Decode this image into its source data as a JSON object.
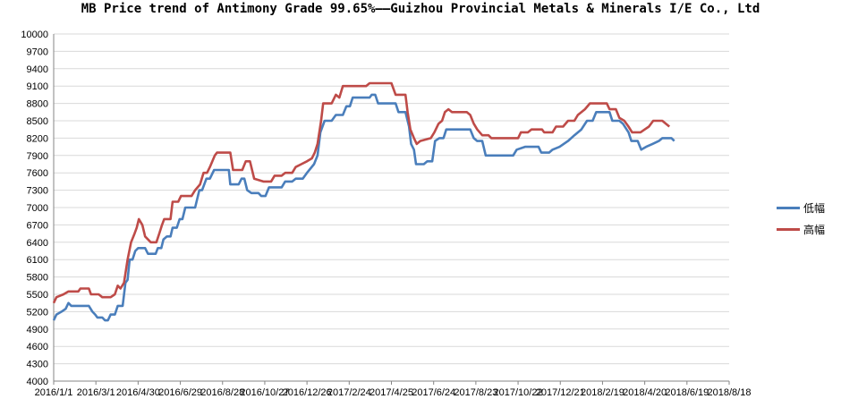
{
  "chart_data": {
    "type": "line",
    "title": "MB Price trend of Antimony Grade 99.65%——Guizhou Provincial Metals & Minerals I/E Co., Ltd",
    "xlabel": "",
    "ylabel": "",
    "x_range": [
      "2016-01-01",
      "2018-08-18"
    ],
    "x_tick_labels": [
      "2016/1/1",
      "2016/3/1",
      "2016/4/30",
      "2016/6/29",
      "2016/8/28",
      "2016/10/27",
      "2016/12/26",
      "2017/2/24",
      "2017/4/25",
      "2017/6/24",
      "2017/8/23",
      "2017/10/22",
      "2017/12/21",
      "2018/2/19",
      "2018/4/20",
      "2018/6/19",
      "2018/8/18"
    ],
    "ylim": [
      4000,
      10000
    ],
    "y_ticks": [
      4000,
      4300,
      4600,
      4900,
      5200,
      5500,
      5800,
      6100,
      6400,
      6700,
      7000,
      7300,
      7600,
      7900,
      8200,
      8500,
      8800,
      9100,
      9400,
      9700,
      10000
    ],
    "grid": "horizontal",
    "legend_position": "right",
    "series": [
      {
        "name": "低幅",
        "color": "#4a7ebb",
        "points": [
          [
            "2016-01-01",
            5050
          ],
          [
            "2016-01-05",
            5150
          ],
          [
            "2016-01-12",
            5200
          ],
          [
            "2016-01-18",
            5250
          ],
          [
            "2016-01-22",
            5350
          ],
          [
            "2016-01-26",
            5300
          ],
          [
            "2016-02-10",
            5300
          ],
          [
            "2016-02-20",
            5300
          ],
          [
            "2016-02-25",
            5200
          ],
          [
            "2016-02-29",
            5150
          ],
          [
            "2016-03-03",
            5100
          ],
          [
            "2016-03-10",
            5100
          ],
          [
            "2016-03-14",
            5050
          ],
          [
            "2016-03-18",
            5050
          ],
          [
            "2016-03-22",
            5150
          ],
          [
            "2016-03-28",
            5150
          ],
          [
            "2016-04-01",
            5300
          ],
          [
            "2016-04-08",
            5300
          ],
          [
            "2016-04-12",
            5700
          ],
          [
            "2016-04-15",
            5750
          ],
          [
            "2016-04-18",
            6100
          ],
          [
            "2016-04-22",
            6100
          ],
          [
            "2016-04-26",
            6250
          ],
          [
            "2016-04-30",
            6300
          ],
          [
            "2016-05-10",
            6300
          ],
          [
            "2016-05-14",
            6200
          ],
          [
            "2016-05-25",
            6200
          ],
          [
            "2016-05-28",
            6300
          ],
          [
            "2016-06-02",
            6300
          ],
          [
            "2016-06-05",
            6450
          ],
          [
            "2016-06-10",
            6500
          ],
          [
            "2016-06-15",
            6500
          ],
          [
            "2016-06-18",
            6650
          ],
          [
            "2016-06-24",
            6650
          ],
          [
            "2016-06-28",
            6800
          ],
          [
            "2016-07-02",
            6800
          ],
          [
            "2016-07-06",
            7000
          ],
          [
            "2016-07-20",
            7000
          ],
          [
            "2016-07-26",
            7300
          ],
          [
            "2016-07-30",
            7300
          ],
          [
            "2016-08-05",
            7500
          ],
          [
            "2016-08-10",
            7500
          ],
          [
            "2016-08-16",
            7650
          ],
          [
            "2016-08-31",
            7650
          ],
          [
            "2016-09-06",
            7650
          ],
          [
            "2016-09-08",
            7400
          ],
          [
            "2016-09-20",
            7400
          ],
          [
            "2016-09-24",
            7500
          ],
          [
            "2016-09-28",
            7500
          ],
          [
            "2016-10-02",
            7300
          ],
          [
            "2016-10-08",
            7250
          ],
          [
            "2016-10-18",
            7250
          ],
          [
            "2016-10-22",
            7200
          ],
          [
            "2016-10-28",
            7200
          ],
          [
            "2016-11-02",
            7350
          ],
          [
            "2016-11-20",
            7350
          ],
          [
            "2016-11-25",
            7450
          ],
          [
            "2016-12-05",
            7450
          ],
          [
            "2016-12-10",
            7500
          ],
          [
            "2016-12-20",
            7500
          ],
          [
            "2016-12-26",
            7600
          ],
          [
            "2017-01-05",
            7750
          ],
          [
            "2017-01-10",
            7900
          ],
          [
            "2017-01-14",
            8300
          ],
          [
            "2017-01-20",
            8500
          ],
          [
            "2017-01-30",
            8500
          ],
          [
            "2017-02-05",
            8600
          ],
          [
            "2017-02-15",
            8600
          ],
          [
            "2017-02-20",
            8750
          ],
          [
            "2017-02-25",
            8750
          ],
          [
            "2017-03-01",
            8900
          ],
          [
            "2017-03-25",
            8900
          ],
          [
            "2017-03-28",
            8950
          ],
          [
            "2017-04-02",
            8950
          ],
          [
            "2017-04-06",
            8800
          ],
          [
            "2017-04-25",
            8800
          ],
          [
            "2017-05-01",
            8800
          ],
          [
            "2017-05-05",
            8650
          ],
          [
            "2017-05-15",
            8650
          ],
          [
            "2017-05-20",
            8400
          ],
          [
            "2017-05-23",
            8100
          ],
          [
            "2017-05-27",
            8000
          ],
          [
            "2017-05-30",
            7750
          ],
          [
            "2017-06-10",
            7750
          ],
          [
            "2017-06-15",
            7800
          ],
          [
            "2017-06-22",
            7800
          ],
          [
            "2017-06-26",
            8150
          ],
          [
            "2017-07-02",
            8200
          ],
          [
            "2017-07-08",
            8200
          ],
          [
            "2017-07-12",
            8350
          ],
          [
            "2017-08-15",
            8350
          ],
          [
            "2017-08-20",
            8200
          ],
          [
            "2017-08-25",
            8150
          ],
          [
            "2017-09-01",
            8150
          ],
          [
            "2017-09-06",
            7900
          ],
          [
            "2017-10-15",
            7900
          ],
          [
            "2017-10-20",
            8000
          ],
          [
            "2017-11-01",
            8050
          ],
          [
            "2017-11-20",
            8050
          ],
          [
            "2017-11-24",
            7950
          ],
          [
            "2017-12-05",
            7950
          ],
          [
            "2017-12-10",
            8000
          ],
          [
            "2017-12-20",
            8050
          ],
          [
            "2018-01-01",
            8150
          ],
          [
            "2018-01-10",
            8250
          ],
          [
            "2018-01-20",
            8350
          ],
          [
            "2018-01-28",
            8500
          ],
          [
            "2018-02-05",
            8500
          ],
          [
            "2018-02-10",
            8650
          ],
          [
            "2018-03-01",
            8650
          ],
          [
            "2018-03-05",
            8500
          ],
          [
            "2018-03-15",
            8500
          ],
          [
            "2018-03-20",
            8450
          ],
          [
            "2018-03-28",
            8300
          ],
          [
            "2018-04-01",
            8150
          ],
          [
            "2018-04-10",
            8150
          ],
          [
            "2018-04-15",
            8000
          ],
          [
            "2018-04-22",
            8050
          ],
          [
            "2018-05-01",
            8100
          ],
          [
            "2018-05-10",
            8150
          ],
          [
            "2018-05-15",
            8200
          ],
          [
            "2018-05-28",
            8200
          ],
          [
            "2018-06-01",
            8150
          ]
        ]
      },
      {
        "name": "高幅",
        "color": "#be4b48",
        "points": [
          [
            "2016-01-01",
            5350
          ],
          [
            "2016-01-05",
            5450
          ],
          [
            "2016-01-15",
            5500
          ],
          [
            "2016-01-22",
            5550
          ],
          [
            "2016-02-05",
            5550
          ],
          [
            "2016-02-08",
            5600
          ],
          [
            "2016-02-20",
            5600
          ],
          [
            "2016-02-23",
            5500
          ],
          [
            "2016-03-05",
            5500
          ],
          [
            "2016-03-10",
            5450
          ],
          [
            "2016-03-22",
            5450
          ],
          [
            "2016-03-28",
            5500
          ],
          [
            "2016-04-01",
            5650
          ],
          [
            "2016-04-05",
            5600
          ],
          [
            "2016-04-10",
            5700
          ],
          [
            "2016-04-15",
            6100
          ],
          [
            "2016-04-20",
            6400
          ],
          [
            "2016-04-25",
            6550
          ],
          [
            "2016-04-28",
            6650
          ],
          [
            "2016-05-01",
            6800
          ],
          [
            "2016-05-06",
            6700
          ],
          [
            "2016-05-10",
            6500
          ],
          [
            "2016-05-18",
            6400
          ],
          [
            "2016-05-26",
            6400
          ],
          [
            "2016-05-30",
            6550
          ],
          [
            "2016-06-03",
            6700
          ],
          [
            "2016-06-06",
            6800
          ],
          [
            "2016-06-15",
            6800
          ],
          [
            "2016-06-18",
            7100
          ],
          [
            "2016-06-26",
            7100
          ],
          [
            "2016-06-30",
            7200
          ],
          [
            "2016-07-15",
            7200
          ],
          [
            "2016-07-20",
            7300
          ],
          [
            "2016-07-27",
            7400
          ],
          [
            "2016-08-01",
            7600
          ],
          [
            "2016-08-06",
            7600
          ],
          [
            "2016-08-10",
            7700
          ],
          [
            "2016-08-17",
            7900
          ],
          [
            "2016-08-20",
            7950
          ],
          [
            "2016-09-08",
            7950
          ],
          [
            "2016-09-12",
            7650
          ],
          [
            "2016-09-25",
            7650
          ],
          [
            "2016-09-30",
            7800
          ],
          [
            "2016-10-06",
            7800
          ],
          [
            "2016-10-12",
            7500
          ],
          [
            "2016-10-25",
            7450
          ],
          [
            "2016-11-05",
            7450
          ],
          [
            "2016-11-10",
            7550
          ],
          [
            "2016-11-20",
            7550
          ],
          [
            "2016-11-25",
            7600
          ],
          [
            "2016-12-05",
            7600
          ],
          [
            "2016-12-10",
            7700
          ],
          [
            "2016-12-18",
            7750
          ],
          [
            "2016-12-26",
            7800
          ],
          [
            "2017-01-02",
            7850
          ],
          [
            "2017-01-06",
            7950
          ],
          [
            "2017-01-10",
            8100
          ],
          [
            "2017-01-15",
            8500
          ],
          [
            "2017-01-18",
            8800
          ],
          [
            "2017-01-30",
            8800
          ],
          [
            "2017-02-05",
            8950
          ],
          [
            "2017-02-10",
            8900
          ],
          [
            "2017-02-15",
            9100
          ],
          [
            "2017-03-20",
            9100
          ],
          [
            "2017-03-25",
            9150
          ],
          [
            "2017-04-25",
            9150
          ],
          [
            "2017-05-01",
            8950
          ],
          [
            "2017-05-15",
            8950
          ],
          [
            "2017-05-18",
            8650
          ],
          [
            "2017-05-22",
            8350
          ],
          [
            "2017-05-27",
            8200
          ],
          [
            "2017-05-31",
            8100
          ],
          [
            "2017-06-05",
            8150
          ],
          [
            "2017-06-20",
            8200
          ],
          [
            "2017-06-25",
            8300
          ],
          [
            "2017-07-01",
            8450
          ],
          [
            "2017-07-06",
            8500
          ],
          [
            "2017-07-10",
            8650
          ],
          [
            "2017-07-15",
            8700
          ],
          [
            "2017-07-20",
            8650
          ],
          [
            "2017-08-10",
            8650
          ],
          [
            "2017-08-15",
            8600
          ],
          [
            "2017-08-20",
            8450
          ],
          [
            "2017-08-25",
            8350
          ],
          [
            "2017-09-01",
            8250
          ],
          [
            "2017-09-10",
            8250
          ],
          [
            "2017-09-14",
            8200
          ],
          [
            "2017-10-22",
            8200
          ],
          [
            "2017-10-26",
            8300
          ],
          [
            "2017-11-05",
            8300
          ],
          [
            "2017-11-10",
            8350
          ],
          [
            "2017-11-25",
            8350
          ],
          [
            "2017-11-28",
            8300
          ],
          [
            "2017-12-10",
            8300
          ],
          [
            "2017-12-15",
            8400
          ],
          [
            "2017-12-25",
            8400
          ],
          [
            "2018-01-01",
            8500
          ],
          [
            "2018-01-10",
            8500
          ],
          [
            "2018-01-15",
            8600
          ],
          [
            "2018-01-25",
            8700
          ],
          [
            "2018-02-01",
            8800
          ],
          [
            "2018-02-25",
            8800
          ],
          [
            "2018-03-01",
            8700
          ],
          [
            "2018-03-10",
            8700
          ],
          [
            "2018-03-15",
            8550
          ],
          [
            "2018-03-22",
            8500
          ],
          [
            "2018-03-28",
            8400
          ],
          [
            "2018-04-02",
            8300
          ],
          [
            "2018-04-14",
            8300
          ],
          [
            "2018-04-20",
            8350
          ],
          [
            "2018-04-26",
            8400
          ],
          [
            "2018-05-02",
            8500
          ],
          [
            "2018-05-15",
            8500
          ],
          [
            "2018-05-20",
            8450
          ],
          [
            "2018-05-25",
            8400
          ]
        ]
      }
    ]
  }
}
